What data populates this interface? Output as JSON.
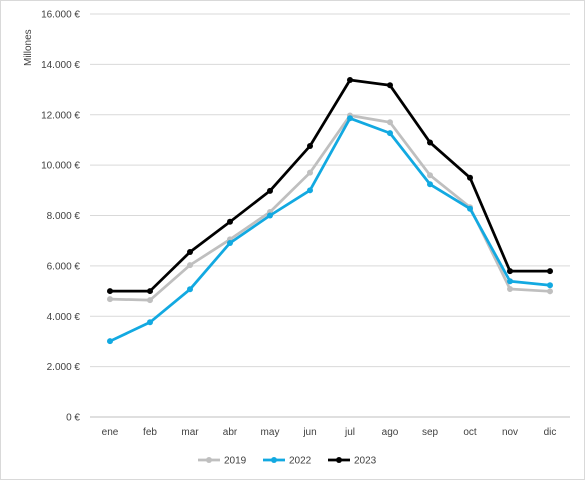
{
  "chart_data": {
    "type": "line",
    "title": "",
    "xlabel": "",
    "ylabel": "Millones",
    "categories": [
      "ene",
      "feb",
      "mar",
      "abr",
      "may",
      "jun",
      "jul",
      "ago",
      "sep",
      "oct",
      "nov",
      "dic"
    ],
    "ylim": [
      0,
      16000
    ],
    "yticks": [
      0,
      2000,
      4000,
      6000,
      8000,
      10000,
      12000,
      14000,
      16000
    ],
    "ytick_labels": [
      "0 €",
      "2.000 €",
      "4.000 €",
      "6.000 €",
      "8.000 €",
      "10.000 €",
      "12.000 €",
      "14.000 €",
      "16.000 €"
    ],
    "grid": "horizontal",
    "legend": "bottom",
    "series": [
      {
        "name": "2019",
        "color": "#bfbfbf",
        "values": [
          4680,
          4640,
          6030,
          7050,
          8140,
          9700,
          11970,
          11700,
          9600,
          8330,
          5080,
          4990
        ]
      },
      {
        "name": "2022",
        "color": "#12a9e1",
        "values": [
          3010,
          3760,
          5070,
          6910,
          8000,
          9000,
          11860,
          11270,
          9240,
          8270,
          5390,
          5230
        ]
      },
      {
        "name": "2023",
        "color": "#000000",
        "values": [
          5000,
          5000,
          6550,
          7750,
          8980,
          10760,
          13380,
          13170,
          10900,
          9500,
          5790,
          5790
        ]
      }
    ]
  }
}
